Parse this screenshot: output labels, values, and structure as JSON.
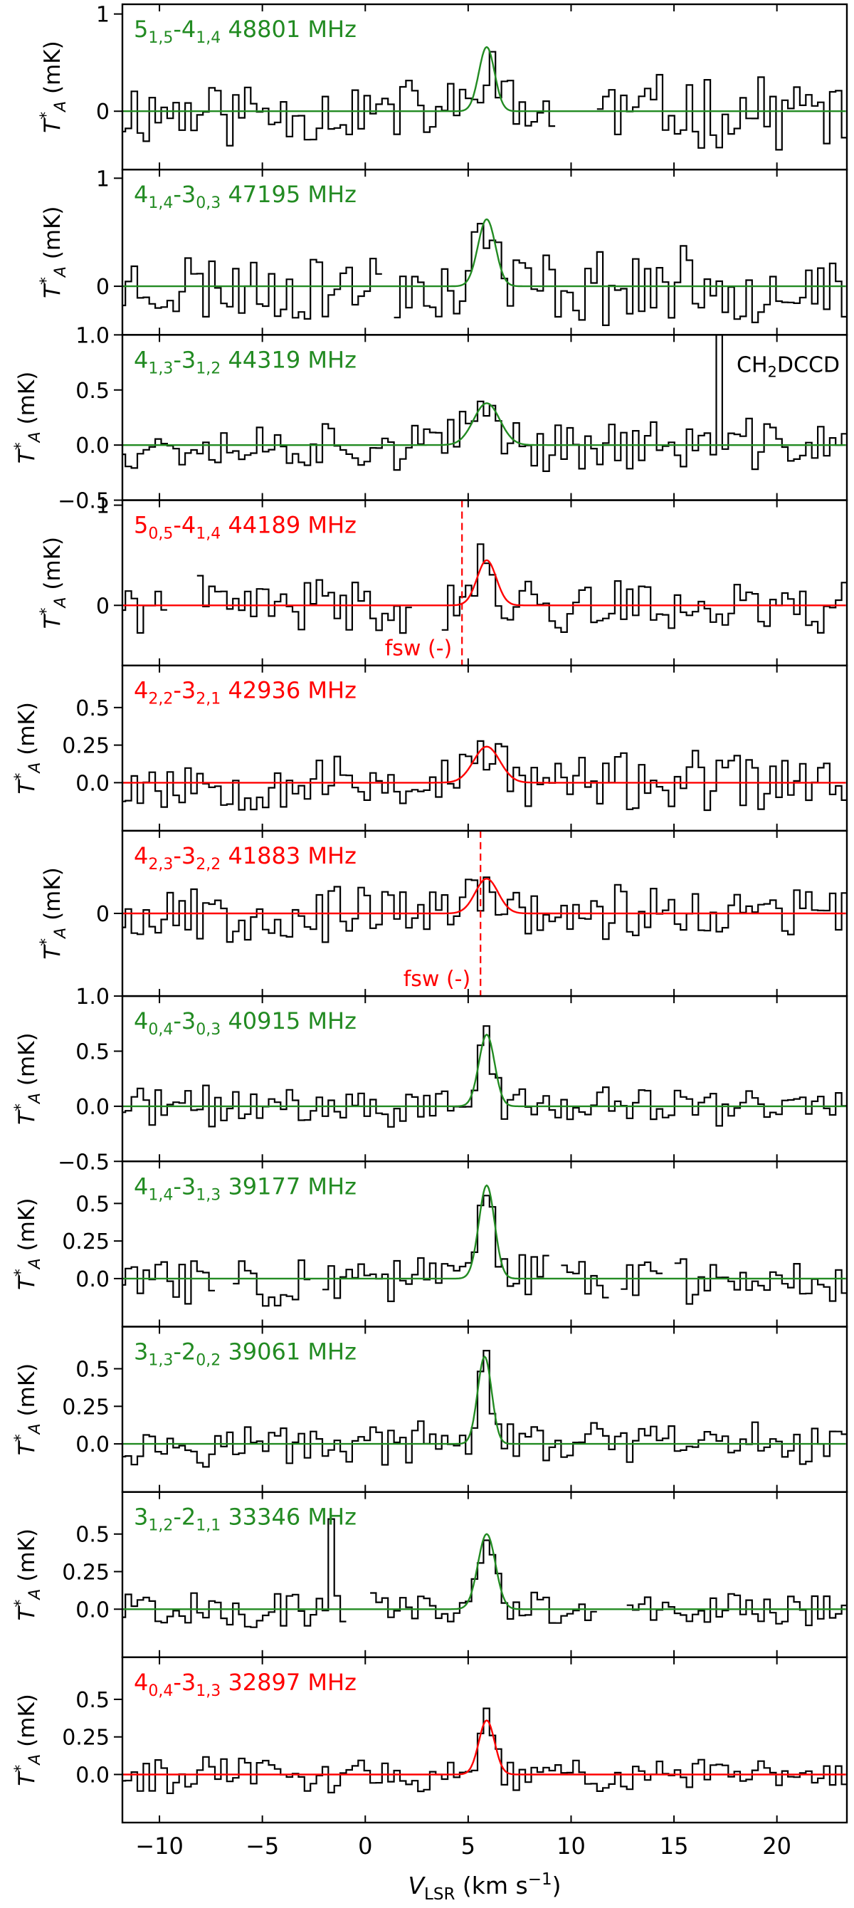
{
  "figure": {
    "xlabel_main": "V",
    "xlabel_sub": "LSR",
    "xlabel_unit": " (km s",
    "xlabel_exp": "−1",
    "xlabel_close": ")",
    "xticks": [
      "−10",
      "−5",
      "0",
      "5",
      "10",
      "15",
      "20"
    ],
    "xtick_values": [
      -10,
      -5,
      0,
      5,
      10,
      15,
      20
    ],
    "xlim": [
      -11.8,
      23.4
    ],
    "colors": {
      "detected": "#228b22",
      "undetected": "#ff0000",
      "observed": "#000000"
    }
  },
  "chart_data": [
    {
      "type": "line",
      "transition": {
        "j": "5",
        "ka_kc_up": "1,5",
        "j2": "4",
        "ka_kc_lo": "1,4"
      },
      "frequency": "48801 MHz",
      "color": "green",
      "ylabel": "T*A (mK)",
      "ylim": [
        -0.6,
        1.1
      ],
      "yticks": [
        {
          "v": 0,
          "label": "0"
        },
        {
          "v": 1,
          "label": "1"
        }
      ],
      "model": {
        "amp": 0.66,
        "center": 5.9,
        "fwhm": 0.9
      },
      "gaps": [
        [
          9.3,
          11.2
        ]
      ],
      "series_seed": 11,
      "noise": 0.32
    },
    {
      "type": "line",
      "transition": {
        "j": "4",
        "ka_kc_up": "1,4",
        "j2": "3",
        "ka_kc_lo": "0,3"
      },
      "frequency": "47195 MHz",
      "color": "green",
      "ylabel": "T*A (mK)",
      "ylim": [
        -0.45,
        1.08
      ],
      "yticks": [
        {
          "v": 0,
          "label": "0"
        },
        {
          "v": 1,
          "label": "1"
        }
      ],
      "model": {
        "amp": 0.62,
        "center": 5.9,
        "fwhm": 1.0
      },
      "gaps": [
        [
          0.8,
          1.4
        ]
      ],
      "series_seed": 23,
      "noise": 0.3
    },
    {
      "type": "line",
      "transition": {
        "j": "4",
        "ka_kc_up": "1,3",
        "j2": "3",
        "ka_kc_lo": "1,2"
      },
      "frequency": "44319 MHz",
      "color": "green",
      "ylabel": "T*A (mK)",
      "ylim": [
        -0.5,
        1.0
      ],
      "yticks": [
        {
          "v": -0.5,
          "label": "−0.5"
        },
        {
          "v": 0,
          "label": "0.0"
        },
        {
          "v": 0.5,
          "label": "0.5"
        },
        {
          "v": 1,
          "label": "1.0"
        }
      ],
      "model": {
        "amp": 0.38,
        "center": 5.9,
        "fwhm": 1.5
      },
      "gaps": [],
      "spike": {
        "x": 17.2,
        "y": 1.0
      },
      "annotation": {
        "main": "CH",
        "sub": "2",
        "rest": "DCCD"
      },
      "series_seed": 37,
      "noise": 0.2
    },
    {
      "type": "line",
      "transition": {
        "j": "5",
        "ka_kc_up": "0,5",
        "j2": "4",
        "ka_kc_lo": "1,4"
      },
      "frequency": "44189 MHz",
      "color": "red",
      "ylabel": "T*A (mK)",
      "ylim": [
        -0.6,
        1.05
      ],
      "yticks": [
        {
          "v": 0,
          "label": "0"
        },
        {
          "v": 1,
          "label": "1"
        }
      ],
      "model": {
        "amp": 0.45,
        "center": 5.9,
        "fwhm": 1.1
      },
      "gaps": [
        [
          -9.6,
          -8.2
        ],
        [
          2.4,
          3.6
        ]
      ],
      "fsw": {
        "x": 4.7,
        "label": "fsw (-)"
      },
      "series_seed": 41,
      "noise": 0.24
    },
    {
      "type": "line",
      "transition": {
        "j": "4",
        "ka_kc_up": "2,2",
        "j2": "3",
        "ka_kc_lo": "2,1"
      },
      "frequency": "42936 MHz",
      "color": "red",
      "ylabel": "T*A (mK)",
      "ylim": [
        -0.32,
        0.78
      ],
      "yticks": [
        {
          "v": 0,
          "label": "0.0"
        },
        {
          "v": 0.25,
          "label": "0.25"
        },
        {
          "v": 0.5,
          "label": "0.5"
        }
      ],
      "model": {
        "amp": 0.24,
        "center": 5.9,
        "fwhm": 1.5
      },
      "gaps": [],
      "series_seed": 53,
      "noise": 0.17
    },
    {
      "type": "line",
      "transition": {
        "j": "4",
        "ka_kc_up": "2,3",
        "j2": "3",
        "ka_kc_lo": "2,2"
      },
      "frequency": "41883 MHz",
      "color": "red",
      "ylabel": "T*A (mK)",
      "ylim": [
        -1.0,
        1.0
      ],
      "yticks": [
        {
          "v": 0,
          "label": "0"
        }
      ],
      "model": {
        "amp": 0.42,
        "center": 5.9,
        "fwhm": 1.3
      },
      "gaps": [],
      "fsw": {
        "x": 5.6,
        "label": "fsw (-)"
      },
      "series_seed": 67,
      "noise": 0.3
    },
    {
      "type": "line",
      "transition": {
        "j": "4",
        "ka_kc_up": "0,4",
        "j2": "3",
        "ka_kc_lo": "0,3"
      },
      "frequency": "40915 MHz",
      "color": "green",
      "ylabel": "T*A (mK)",
      "ylim": [
        -0.5,
        1.0
      ],
      "yticks": [
        {
          "v": -0.5,
          "label": "−0.5"
        },
        {
          "v": 0,
          "label": "0.0"
        },
        {
          "v": 0.5,
          "label": "0.5"
        },
        {
          "v": 1,
          "label": "1.0"
        }
      ],
      "model": {
        "amp": 0.65,
        "center": 5.9,
        "fwhm": 0.9
      },
      "gaps": [],
      "series_seed": 71,
      "noise": 0.16
    },
    {
      "type": "line",
      "transition": {
        "j": "4",
        "ka_kc_up": "1,4",
        "j2": "3",
        "ka_kc_lo": "1,3"
      },
      "frequency": "39177 MHz",
      "color": "green",
      "ylabel": "T*A (mK)",
      "ylim": [
        -0.32,
        0.78
      ],
      "yticks": [
        {
          "v": 0,
          "label": "0.0"
        },
        {
          "v": 0.25,
          "label": "0.25"
        },
        {
          "v": 0.5,
          "label": "0.5"
        }
      ],
      "model": {
        "amp": 0.62,
        "center": 5.9,
        "fwhm": 0.9
      },
      "gaps": [
        [
          -7.2,
          -6.5
        ],
        [
          -2.6,
          -2.1
        ],
        [
          8.8,
          9.4
        ],
        [
          11.8,
          12.4
        ],
        [
          14.4,
          14.9
        ]
      ],
      "series_seed": 83,
      "noise": 0.15
    },
    {
      "type": "line",
      "transition": {
        "j": "3",
        "ka_kc_up": "1,3",
        "j2": "2",
        "ka_kc_lo": "0,2"
      },
      "frequency": "39061 MHz",
      "color": "green",
      "ylabel": "T*A (mK)",
      "ylim": [
        -0.32,
        0.78
      ],
      "yticks": [
        {
          "v": 0,
          "label": "0.0"
        },
        {
          "v": 0.25,
          "label": "0.25"
        },
        {
          "v": 0.5,
          "label": "0.5"
        }
      ],
      "model": {
        "amp": 0.58,
        "center": 5.8,
        "fwhm": 0.8
      },
      "gaps": [],
      "series_seed": 97,
      "noise": 0.12
    },
    {
      "type": "line",
      "transition": {
        "j": "3",
        "ka_kc_up": "1,2",
        "j2": "2",
        "ka_kc_lo": "1,1"
      },
      "frequency": "33346 MHz",
      "color": "green",
      "ylabel": "T*A (mK)",
      "ylim": [
        -0.32,
        0.78
      ],
      "yticks": [
        {
          "v": 0,
          "label": "0.0"
        },
        {
          "v": 0.25,
          "label": "0.25"
        },
        {
          "v": 0.5,
          "label": "0.5"
        }
      ],
      "model": {
        "amp": 0.5,
        "center": 5.9,
        "fwhm": 1.0
      },
      "gaps": [
        [
          -0.9,
          0.3
        ],
        [
          11.2,
          12.6
        ]
      ],
      "spike": {
        "x": -1.6,
        "y": 0.6
      },
      "series_seed": 101,
      "noise": 0.11
    },
    {
      "type": "line",
      "transition": {
        "j": "4",
        "ka_kc_up": "0,4",
        "j2": "3",
        "ka_kc_lo": "1,3"
      },
      "frequency": "32897 MHz",
      "color": "red",
      "ylabel": "T*A (mK)",
      "ylim": [
        -0.32,
        0.78
      ],
      "yticks": [
        {
          "v": 0,
          "label": "0.0"
        },
        {
          "v": 0.25,
          "label": "0.25"
        },
        {
          "v": 0.5,
          "label": "0.5"
        }
      ],
      "model": {
        "amp": 0.36,
        "center": 5.9,
        "fwhm": 0.9
      },
      "gaps": [],
      "series_seed": 113,
      "noise": 0.1
    }
  ]
}
